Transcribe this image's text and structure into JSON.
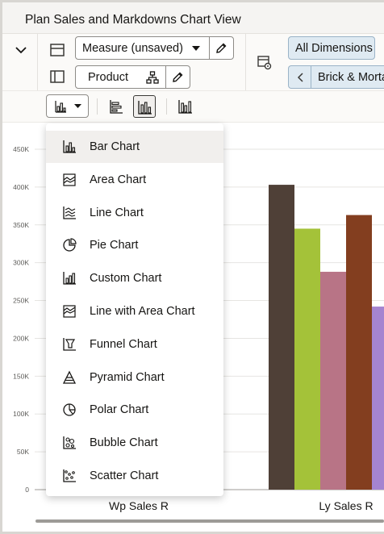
{
  "window": {
    "title": "Plan Sales and Markdowns Chart View"
  },
  "toolbar": {
    "measure_select": "Measure (unsaved)",
    "product_select": "Product",
    "all_dimensions": "All Dimensions",
    "breadcrumb": "Brick & Morta"
  },
  "chart_menu": {
    "items": [
      {
        "label": "Bar Chart",
        "icon": "bar-chart-icon",
        "selected": true
      },
      {
        "label": "Area Chart",
        "icon": "area-chart-icon"
      },
      {
        "label": "Line Chart",
        "icon": "line-chart-icon"
      },
      {
        "label": "Pie Chart",
        "icon": "pie-chart-icon"
      },
      {
        "label": "Custom Chart",
        "icon": "custom-chart-icon"
      },
      {
        "label": "Line with Area Chart",
        "icon": "line-area-chart-icon"
      },
      {
        "label": "Funnel Chart",
        "icon": "funnel-chart-icon"
      },
      {
        "label": "Pyramid Chart",
        "icon": "pyramid-chart-icon"
      },
      {
        "label": "Polar Chart",
        "icon": "polar-chart-icon"
      },
      {
        "label": "Bubble Chart",
        "icon": "bubble-chart-icon"
      },
      {
        "label": "Scatter Chart",
        "icon": "scatter-chart-icon"
      }
    ]
  },
  "chart_data": {
    "type": "bar",
    "categories": [
      "Wp Sales R",
      "Ly Sales R"
    ],
    "yticks": [
      "0",
      "50K",
      "100K",
      "150K",
      "200K",
      "250K",
      "300K",
      "350K",
      "400K",
      "450K"
    ],
    "ylim": [
      0,
      450000
    ],
    "grid": true,
    "series": [
      {
        "color": "#4f4037",
        "values": [
          null,
          403000
        ]
      },
      {
        "color": "#a4c239",
        "values": [
          null,
          345000
        ]
      },
      {
        "color": "#b87486",
        "values": [
          null,
          288000
        ]
      },
      {
        "color": "#833e1f",
        "values": [
          null,
          363000
        ]
      },
      {
        "color": "#a584d0",
        "values": [
          null,
          242000
        ]
      }
    ]
  }
}
